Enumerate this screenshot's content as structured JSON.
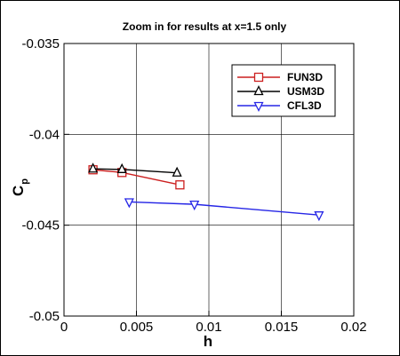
{
  "chart_data": {
    "type": "line",
    "title": "Zoom in for results at x=1.5 only",
    "xlabel": "h",
    "ylabel": "C",
    "ylabel_subscript": "p",
    "xlim": [
      0,
      0.02
    ],
    "ylim": [
      -0.05,
      -0.035
    ],
    "grid": true,
    "legend_position": "top-right",
    "x_ticks": [
      0,
      0.005,
      0.01,
      0.015,
      0.02
    ],
    "x_tick_labels": [
      "0",
      "0.005",
      "0.01",
      "0.015",
      "0.02"
    ],
    "y_ticks": [
      -0.035,
      -0.04,
      -0.045,
      -0.05
    ],
    "y_tick_labels": [
      "-0.035",
      "-0.04",
      "-0.045",
      "-0.05"
    ],
    "series": [
      {
        "name": "FUN3D",
        "color": "#cc1f1f",
        "marker": "square",
        "x": [
          0.002,
          0.004,
          0.008
        ],
        "y": [
          -0.04195,
          -0.0421,
          -0.04278
        ]
      },
      {
        "name": "USM3D",
        "color": "#000000",
        "marker": "triangle-up",
        "x": [
          0.002,
          0.004,
          0.0078
        ],
        "y": [
          -0.0419,
          -0.04193,
          -0.04212
        ]
      },
      {
        "name": "CFL3D",
        "color": "#2626e6",
        "marker": "triangle-down",
        "x": [
          0.0045,
          0.009,
          0.0176
        ],
        "y": [
          -0.04372,
          -0.04385,
          -0.04444
        ]
      }
    ]
  }
}
